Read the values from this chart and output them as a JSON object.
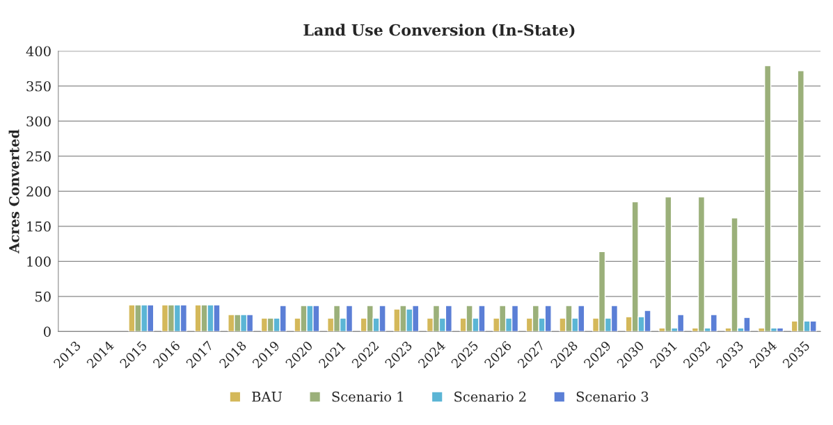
{
  "chart_data": {
    "type": "bar",
    "title": "Land Use Conversion (In-State)",
    "ylabel": "Acres Converted",
    "categories": [
      "2013",
      "2014",
      "2015",
      "2016",
      "2017",
      "2018",
      "2019",
      "2020",
      "2021",
      "2022",
      "2023",
      "2024",
      "2025",
      "2026",
      "2027",
      "2028",
      "2029",
      "2030",
      "2031",
      "2032",
      "2033",
      "2034",
      "2035"
    ],
    "series": [
      {
        "name": "BAU",
        "color": "#d4b85a",
        "values": [
          null,
          null,
          38,
          38,
          38,
          24,
          19,
          19,
          19,
          19,
          32,
          19,
          19,
          19,
          19,
          19,
          19,
          21,
          5,
          5,
          5,
          5,
          15
        ]
      },
      {
        "name": "Scenario 1",
        "color": "#9bb07a",
        "values": [
          null,
          null,
          38,
          38,
          38,
          24,
          19,
          37,
          37,
          37,
          37,
          37,
          37,
          37,
          37,
          37,
          114,
          185,
          192,
          192,
          162,
          379,
          372
        ]
      },
      {
        "name": "Scenario 2",
        "color": "#5bb5d5",
        "values": [
          null,
          null,
          38,
          38,
          38,
          24,
          19,
          37,
          19,
          19,
          32,
          19,
          19,
          19,
          19,
          19,
          19,
          21,
          5,
          5,
          5,
          5,
          15
        ]
      },
      {
        "name": "Scenario 3",
        "color": "#5b7fd6",
        "values": [
          null,
          null,
          38,
          38,
          38,
          24,
          37,
          37,
          37,
          37,
          37,
          37,
          37,
          37,
          37,
          37,
          37,
          30,
          24,
          24,
          20,
          5,
          15
        ]
      }
    ],
    "ylim": [
      0,
      400
    ],
    "yticks": [
      0,
      50,
      100,
      150,
      200,
      250,
      300,
      350,
      400
    ],
    "grid": "y",
    "legend": "bottom"
  }
}
